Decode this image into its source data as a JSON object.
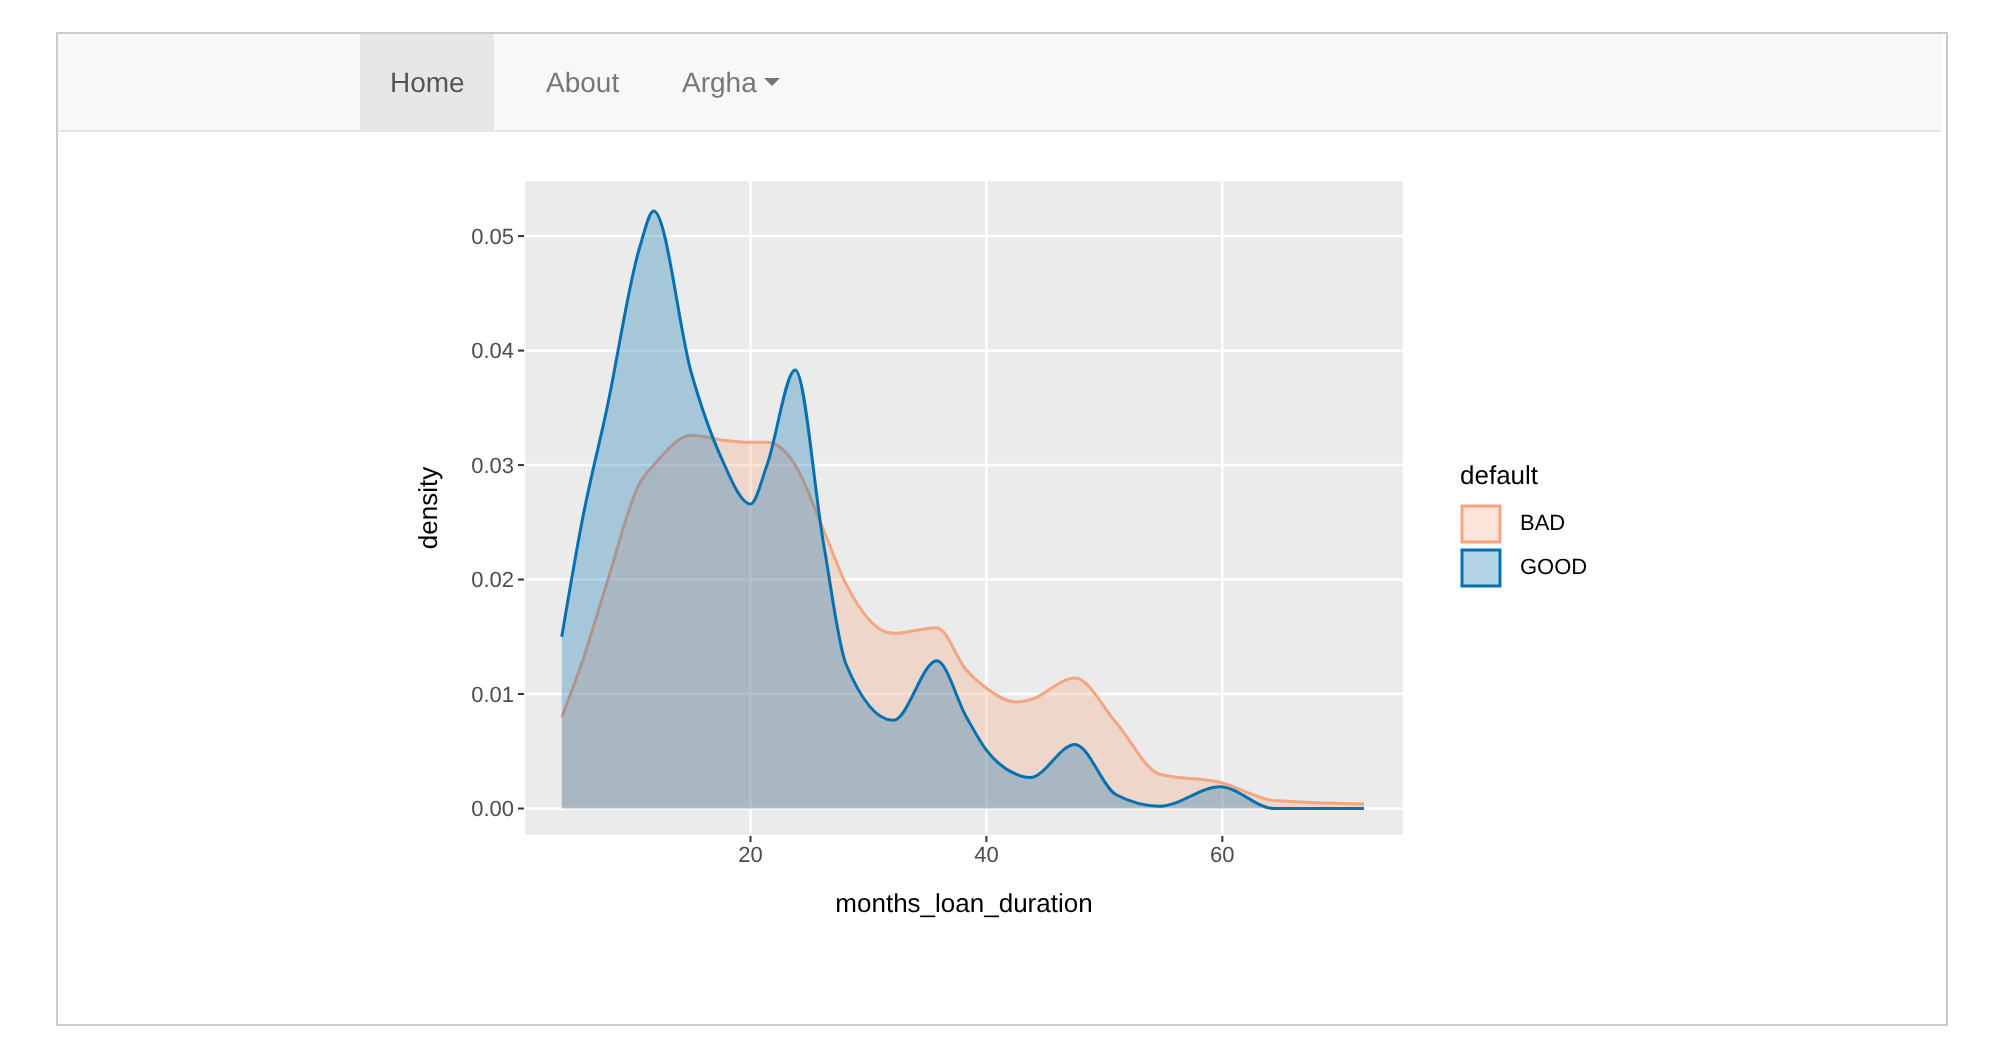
{
  "chart_data": {
    "type": "area",
    "xlabel": "months_loan_duration",
    "ylabel": "density",
    "legend_title": "default",
    "annotations": [
      "Home",
      "About",
      "Argha"
    ],
    "x": [
      4,
      5.8,
      7.8,
      10.6,
      11.8,
      15,
      17.5,
      20,
      21.4,
      23.8,
      26.2,
      28.1,
      32.1,
      35.8,
      38.3,
      40,
      42.5,
      43.7,
      47.5,
      51,
      54.7,
      59.8,
      64.4,
      72
    ],
    "series": [
      {
        "name": "BAD",
        "color": "#f4a582",
        "values": [
          0.008,
          0.013,
          0.0196,
          0.0284,
          0.03,
          0.0326,
          0.0322,
          0.032,
          0.032,
          0.03,
          0.0243,
          0.0196,
          0.0153,
          0.0158,
          0.0121,
          0.0105,
          0.0093,
          0.0095,
          0.0114,
          0.0075,
          0.003,
          0.0023,
          0.0007,
          0.0004
        ]
      },
      {
        "name": "GOOD",
        "color": "#0571b0",
        "values": [
          0.015,
          0.0255,
          0.0348,
          0.049,
          0.0522,
          0.038,
          0.0307,
          0.0266,
          0.03,
          0.0383,
          0.0231,
          0.0126,
          0.0077,
          0.0129,
          0.008,
          0.0051,
          0.003,
          0.0027,
          0.0056,
          0.0012,
          0.0002,
          0.0019,
          0,
          0
        ]
      }
    ],
    "xlim": [
      0.8,
      75.4
    ],
    "xticks": [
      20,
      40,
      60
    ],
    "ylim": [
      -0.0024,
      0.0549
    ],
    "yticks": [
      {
        "value": 0,
        "label": "0.00"
      },
      {
        "value": 0.01,
        "label": "0.01"
      },
      {
        "value": 0.02,
        "label": "0.02"
      },
      {
        "value": 0.03,
        "label": "0.03"
      },
      {
        "value": 0.04,
        "label": "0.04"
      },
      {
        "value": 0.05,
        "label": "0.05"
      }
    ],
    "grid": true,
    "legend": "right"
  }
}
